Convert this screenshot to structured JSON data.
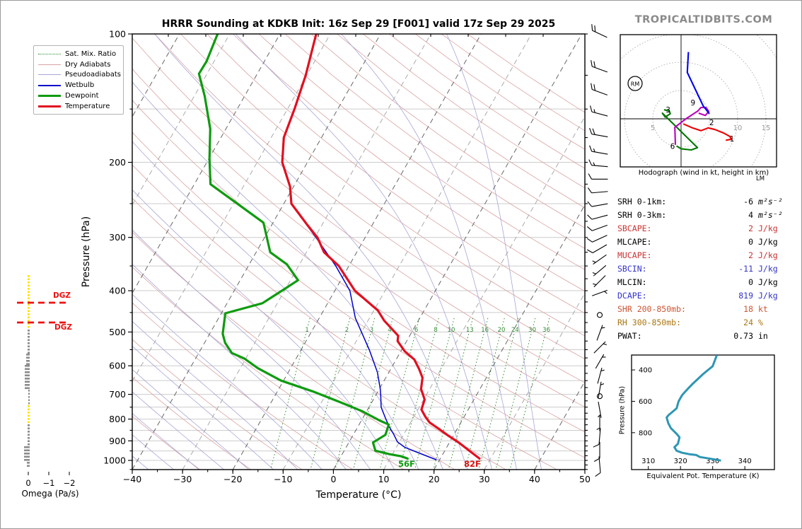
{
  "title": "HRRR Sounding at KDKB Init: 16z Sep 29 [F001] valid 17z Sep 29 2025",
  "watermark": "TROPICALTIDBITS.COM",
  "skewt": {
    "xlabel": "Temperature (°C)",
    "ylabel": "Pressure (hPa)",
    "pressure_ticks": [
      100,
      200,
      300,
      400,
      500,
      600,
      700,
      800,
      900,
      1000
    ],
    "temp_ticks": [
      -40,
      -30,
      -20,
      -10,
      0,
      10,
      20,
      30,
      40,
      50
    ],
    "surface_temp_label": "82F",
    "surface_dew_label": "56F",
    "dgz_label": "DGZ",
    "mixing_ratio_values": [
      1,
      2,
      3,
      4,
      6,
      8,
      10,
      13,
      16,
      20,
      24,
      30,
      36
    ],
    "legend": [
      {
        "label": "Sat. Mix. Ratio",
        "color": "#2e8b2e",
        "style": "dotted",
        "width": 1
      },
      {
        "label": "Dry Adiabats",
        "color": "#d9a3a3",
        "style": "solid",
        "width": 1
      },
      {
        "label": "Pseudoadiabats",
        "color": "#a6a6d6",
        "style": "solid",
        "width": 1
      },
      {
        "label": "Wetbulb",
        "color": "#0000cc",
        "style": "solid",
        "width": 1.6
      },
      {
        "label": "Dewpoint",
        "color": "#0f9b0f",
        "style": "solid",
        "width": 3
      },
      {
        "label": "Temperature",
        "color": "#e01020",
        "style": "solid",
        "width": 3
      }
    ]
  },
  "omega": {
    "label": "Omega (Pa/s)",
    "ticks": [
      "0",
      "-1",
      "-2"
    ]
  },
  "hodograph": {
    "caption": "Hodograph (wind in kt, height in km)",
    "ring_labels": [
      "5",
      "10",
      "15"
    ],
    "kt_per_ring": 5,
    "rm_label": "RM",
    "lm_label": "LM",
    "height_labels": [
      {
        "t": "1",
        "u": 9.0,
        "v": -4.0
      },
      {
        "t": "2",
        "u": 5.4,
        "v": -1.1
      },
      {
        "t": "3",
        "u": -2.3,
        "v": 1.1
      },
      {
        "t": "6",
        "u": -1.5,
        "v": -5.3
      },
      {
        "t": "9",
        "u": 2.1,
        "v": 2.4
      }
    ]
  },
  "stats": {
    "rows": [
      {
        "label": "SRH 0-1km:",
        "value": "-6",
        "unit": "m²s⁻²",
        "color": "#000000",
        "italic_unit": true
      },
      {
        "label": "SRH 0-3km:",
        "value": "4",
        "unit": "m²s⁻²",
        "color": "#000000",
        "italic_unit": true
      },
      {
        "label": "SBCAPE:",
        "value": "2",
        "unit": "J/kg",
        "color": "#cc3333"
      },
      {
        "label": "MLCAPE:",
        "value": "0",
        "unit": "J/kg",
        "color": "#000000"
      },
      {
        "label": "MUCAPE:",
        "value": "2",
        "unit": "J/kg",
        "color": "#cc3333"
      },
      {
        "label": "SBCIN:",
        "value": "-11",
        "unit": "J/kg",
        "color": "#3333cc"
      },
      {
        "label": "MLCIN:",
        "value": "0",
        "unit": "J/kg",
        "color": "#000000"
      },
      {
        "label": "DCAPE:",
        "value": "819",
        "unit": "J/kg",
        "color": "#3333cc"
      },
      {
        "label": "SHR 200-850mb:",
        "value": "18",
        "unit": "kt",
        "color": "#cc5533"
      },
      {
        "label": "RH 300-850mb:",
        "value": "24",
        "unit": "%",
        "color": "#aa7711"
      },
      {
        "label": "PWAT:",
        "value": "0.73",
        "unit": "in",
        "color": "#000000"
      }
    ]
  },
  "ept": {
    "xlabel": "Equivalent Pot. Temperature (K)",
    "ylabel": "Pressure (hPa)",
    "x_ticks": [
      310,
      320,
      330,
      340
    ],
    "y_ticks": [
      400,
      600,
      800
    ]
  },
  "chart_data": [
    {
      "type": "line",
      "title": "Skew-T sounding profiles (pressure hPa vs temperature °C)",
      "series": [
        {
          "name": "temperature",
          "color": "#e01020",
          "points": [
            [
              100,
              -52.8
            ],
            [
              125,
              -50.2
            ],
            [
              150,
              -48.6
            ],
            [
              175,
              -47.5
            ],
            [
              200,
              -45
            ],
            [
              228,
              -40.7
            ],
            [
              250,
              -38.5
            ],
            [
              280,
              -33
            ],
            [
              300,
              -29.5
            ],
            [
              325,
              -26.5
            ],
            [
              350,
              -22
            ],
            [
              400,
              -16
            ],
            [
              445,
              -9.2
            ],
            [
              470,
              -6.8
            ],
            [
              510,
              -2.3
            ],
            [
              525,
              -1.8
            ],
            [
              555,
              0.8
            ],
            [
              580,
              3.6
            ],
            [
              610,
              5.6
            ],
            [
              640,
              7.3
            ],
            [
              680,
              8.3
            ],
            [
              720,
              10.2
            ],
            [
              760,
              10.7
            ],
            [
              790,
              12.3
            ],
            [
              815,
              13.8
            ],
            [
              845,
              16.5
            ],
            [
              875,
              19
            ],
            [
              910,
              22
            ],
            [
              955,
              25.3
            ],
            [
              990,
              27.8
            ]
          ]
        },
        {
          "name": "dewpoint",
          "color": "#0f9b0f",
          "points": [
            [
              100,
              -72.4
            ],
            [
              116,
              -71.5
            ],
            [
              124,
              -71.6
            ],
            [
              140,
              -67.9
            ],
            [
              167,
              -63.1
            ],
            [
              196,
              -59.9
            ],
            [
              225,
              -56.8
            ],
            [
              277,
              -41.9
            ],
            [
              325,
              -37.2
            ],
            [
              347,
              -32.5
            ],
            [
              378,
              -28.5
            ],
            [
              400,
              -30.5
            ],
            [
              428,
              -33
            ],
            [
              452,
              -39.2
            ],
            [
              505,
              -37.4
            ],
            [
              530,
              -35.9
            ],
            [
              560,
              -33.4
            ],
            [
              577,
              -30.3
            ],
            [
              608,
              -26.5
            ],
            [
              650,
              -20.5
            ],
            [
              691,
              -12.6
            ],
            [
              731,
              -6.2
            ],
            [
              766,
              -1.0
            ],
            [
              806,
              3.6
            ],
            [
              824,
              5.9
            ],
            [
              871,
              6.4
            ],
            [
              908,
              4.8
            ],
            [
              949,
              6.2
            ],
            [
              967,
              9.4
            ],
            [
              978,
              12.0
            ],
            [
              990,
              13.5
            ]
          ]
        },
        {
          "name": "wetbulb",
          "color": "#0000cc",
          "points": [
            [
              250,
              -38.6
            ],
            [
              300,
              -29.8
            ],
            [
              350,
              -22.6
            ],
            [
              400,
              -17
            ],
            [
              464,
              -12.8
            ],
            [
              551,
              -6.4
            ],
            [
              621,
              -2.3
            ],
            [
              678,
              0.1
            ],
            [
              707,
              1.1
            ],
            [
              750,
              2.4
            ],
            [
              800,
              4.7
            ],
            [
              833,
              6.2
            ],
            [
              871,
              8.1
            ],
            [
              905,
              9.6
            ],
            [
              932,
              11.7
            ],
            [
              959,
              14.9
            ],
            [
              996,
              19.3
            ]
          ]
        }
      ]
    },
    {
      "type": "line",
      "title": "Hodograph (u,v in kt by height segment)",
      "series": [
        {
          "name": "0-3km",
          "color": "#ee0000",
          "points": [
            [
              0.4,
              -0.9
            ],
            [
              2.0,
              -1.6
            ],
            [
              3.5,
              -2.1
            ],
            [
              4.8,
              -1.6
            ],
            [
              6.0,
              -1.9
            ],
            [
              7.5,
              -2.5
            ],
            [
              8.6,
              -3.1
            ],
            [
              8.9,
              -3.6
            ],
            [
              7.9,
              -3.8
            ]
          ]
        },
        {
          "name": "3-6km",
          "color": "#007700",
          "points": [
            [
              -3.0,
              1.6
            ],
            [
              -2.1,
              1.4
            ],
            [
              -1.9,
              0.9
            ],
            [
              -2.8,
              0.3
            ],
            [
              -3.3,
              1.0
            ],
            [
              2.9,
              -5.1
            ],
            [
              1.8,
              -5.5
            ],
            [
              0.0,
              -5.3
            ],
            [
              -0.8,
              -4.8
            ]
          ]
        },
        {
          "name": "6-9km",
          "color": "#bb00bb",
          "points": [
            [
              -1.0,
              -4.6
            ],
            [
              -1.1,
              -1.5
            ],
            [
              1.0,
              0.1
            ],
            [
              3.0,
              1.4
            ],
            [
              3.5,
              2.0
            ],
            [
              4.4,
              2.0
            ],
            [
              4.9,
              1.3
            ],
            [
              4.3,
              0.6
            ],
            [
              3.1,
              1.0
            ]
          ]
        },
        {
          "name": "9km+",
          "color": "#0000ee",
          "points": [
            [
              1.3,
              11.8
            ],
            [
              1.1,
              8.2
            ],
            [
              3.9,
              2.3
            ],
            [
              5.0,
              0.9
            ]
          ]
        }
      ]
    },
    {
      "type": "line",
      "title": "Equivalent potential temperature (K) vs pressure (hPa)",
      "points": [
        [
          305,
          331.3
        ],
        [
          376,
          330.0
        ],
        [
          425,
          327.1
        ],
        [
          488,
          323.8
        ],
        [
          524,
          322.1
        ],
        [
          560,
          320.5
        ],
        [
          600,
          319.4
        ],
        [
          645,
          318.8
        ],
        [
          690,
          316.2
        ],
        [
          703,
          315.7
        ],
        [
          739,
          316.2
        ],
        [
          771,
          317.0
        ],
        [
          807,
          318.8
        ],
        [
          829,
          319.7
        ],
        [
          870,
          319.2
        ],
        [
          892,
          318.1
        ],
        [
          915,
          318.8
        ],
        [
          928,
          320.5
        ],
        [
          937,
          322.7
        ],
        [
          942,
          324.9
        ],
        [
          955,
          326.0
        ],
        [
          964,
          328.7
        ],
        [
          969,
          330.2
        ],
        [
          978,
          332.6
        ]
      ]
    },
    {
      "type": "wind-barbs",
      "title": "Wind barbs (pressure hPa, direction-from deg, speed kt; speed 0 = calm)",
      "barbs": [
        [
          100,
          295,
          20
        ],
        [
          121,
          290,
          20
        ],
        [
          137,
          290,
          20
        ],
        [
          154,
          285,
          15
        ],
        [
          173,
          280,
          20
        ],
        [
          190,
          280,
          15
        ],
        [
          204,
          275,
          15
        ],
        [
          219,
          270,
          10
        ],
        [
          235,
          265,
          10
        ],
        [
          252,
          260,
          10
        ],
        [
          269,
          255,
          10
        ],
        [
          285,
          250,
          10
        ],
        [
          302,
          245,
          10
        ],
        [
          319,
          240,
          10
        ],
        [
          338,
          235,
          5
        ],
        [
          359,
          230,
          5
        ],
        [
          380,
          225,
          5
        ],
        [
          405,
          70,
          5
        ],
        [
          456,
          0,
          0
        ],
        [
          502,
          20,
          5
        ],
        [
          543,
          45,
          5
        ],
        [
          586,
          30,
          5
        ],
        [
          633,
          15,
          5
        ],
        [
          683,
          10,
          5
        ],
        [
          707,
          0,
          0
        ],
        [
          761,
          170,
          5
        ],
        [
          817,
          180,
          5
        ],
        [
          878,
          185,
          10
        ],
        [
          946,
          180,
          10
        ],
        [
          1023,
          175,
          10
        ]
      ]
    },
    {
      "type": "omega-profile",
      "title": "Omega trace marks (y0,y1 px range, color, bar width px)",
      "dgz_lines_y": [
        427,
        455
      ],
      "ranges": [
        [
          388,
          462,
          "yellow",
          3
        ],
        [
          465,
          497,
          "gray",
          3
        ],
        [
          499,
          513,
          "gray",
          5
        ],
        [
          515,
          548,
          "gray",
          7
        ],
        [
          550,
          570,
          "gray",
          2
        ],
        [
          572,
          597,
          "yellow",
          3
        ],
        [
          599,
          628,
          "gray",
          3
        ],
        [
          630,
          651,
          "gray",
          8
        ],
        [
          652,
          659,
          "gray",
          4
        ]
      ]
    }
  ]
}
